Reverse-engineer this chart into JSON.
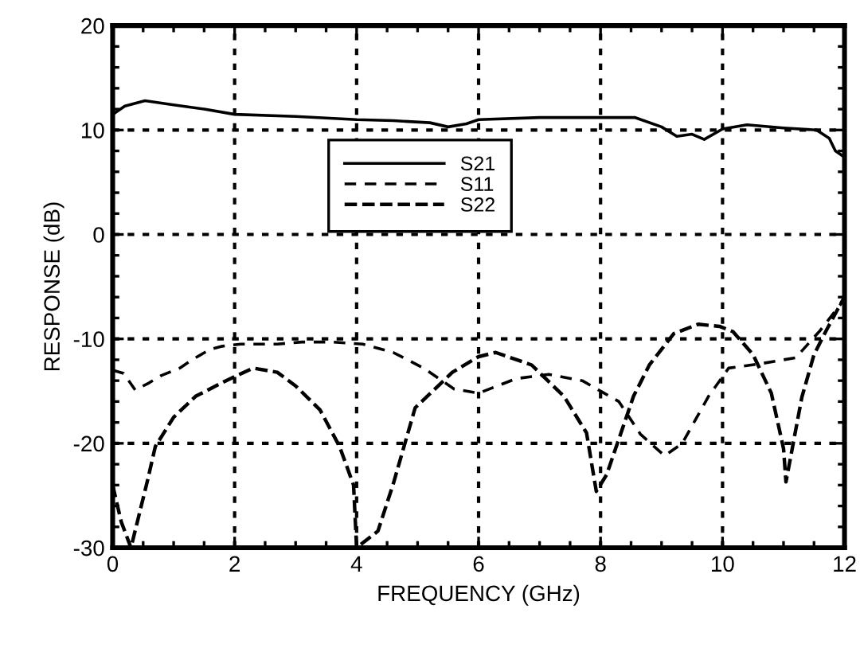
{
  "chart_data": {
    "type": "line",
    "xlabel": "FREQUENCY (GHz)",
    "ylabel": "RESPONSE (dB)",
    "xlim": [
      0,
      12
    ],
    "ylim": [
      -30,
      20
    ],
    "xticks": [
      0,
      2,
      4,
      6,
      8,
      10,
      12
    ],
    "yticks": [
      -30,
      -20,
      -10,
      0,
      10,
      20
    ],
    "grid": true,
    "legend": "top",
    "series": [
      {
        "name": "S21",
        "color": "#000000",
        "line_style": "solid",
        "x": [
          0,
          0.2,
          0.53,
          1.0,
          1.5,
          2,
          3,
          4,
          4.6,
          5.2,
          5.5,
          5.8,
          6,
          7,
          8,
          8.56,
          9.0,
          9.25,
          9.5,
          9.7,
          10,
          10.4,
          11,
          11.54,
          11.75,
          11.85,
          12
        ],
        "values": [
          11.5,
          12.3,
          12.8,
          12.4,
          12.0,
          11.5,
          11.3,
          11.0,
          10.9,
          10.7,
          10.3,
          10.6,
          11.0,
          11.2,
          11.2,
          11.2,
          10.3,
          9.4,
          9.6,
          9.1,
          10.1,
          10.5,
          10.2,
          10.0,
          9.2,
          8.0,
          7.4
        ]
      },
      {
        "name": "S11",
        "color": "#000000",
        "line_style": "dashed",
        "x": [
          0,
          0.18,
          0.37,
          0.6,
          0.8,
          1.1,
          1.3,
          1.6,
          1.8,
          2.1,
          2.7,
          3.1,
          3.6,
          4.1,
          4.6,
          5.1,
          5.6,
          6.0,
          6.62,
          7.15,
          7.7,
          8.3,
          8.65,
          9.05,
          9.34,
          9.77,
          10.1,
          10.6,
          11.2,
          11.6,
          12
        ],
        "values": [
          -13,
          -13.3,
          -14.9,
          -14.2,
          -13.5,
          -12.8,
          -12.0,
          -11.0,
          -10.7,
          -10.5,
          -10.5,
          -10.3,
          -10.3,
          -10.5,
          -11.3,
          -12.8,
          -14.8,
          -15.2,
          -13.8,
          -13.4,
          -14.0,
          -16.0,
          -19.1,
          -21.2,
          -20.0,
          -15.5,
          -12.8,
          -12.4,
          -11.8,
          -9.2,
          -6.2
        ]
      },
      {
        "name": "S22",
        "color": "#000000",
        "line_style": "dashed",
        "x": [
          0,
          0.14,
          0.3,
          0.57,
          0.7,
          1.0,
          1.36,
          1.86,
          2.3,
          2.7,
          3.0,
          3.4,
          3.72,
          3.95,
          4.0,
          4.35,
          4.6,
          4.96,
          5.57,
          6.0,
          6.28,
          6.87,
          7.4,
          7.77,
          7.93,
          8.1,
          8.54,
          8.8,
          9.2,
          9.6,
          9.95,
          10.17,
          10.5,
          10.8,
          11.0,
          11.04,
          11.3,
          11.5,
          11.7,
          11.95,
          12
        ],
        "values": [
          -24,
          -27.5,
          -30,
          -23.6,
          -20.3,
          -17.5,
          -15.5,
          -14.0,
          -12.8,
          -13.2,
          -14.5,
          -16.8,
          -20.3,
          -24,
          -30,
          -28.4,
          -23.9,
          -16.6,
          -13.2,
          -11.7,
          -11.3,
          -12.5,
          -15.5,
          -19,
          -24.6,
          -23,
          -15.5,
          -12.5,
          -9.5,
          -8.6,
          -8.8,
          -9.3,
          -11.5,
          -15.2,
          -20.5,
          -23.7,
          -15.6,
          -11.5,
          -9.2,
          -6.5,
          -6
        ]
      }
    ]
  }
}
